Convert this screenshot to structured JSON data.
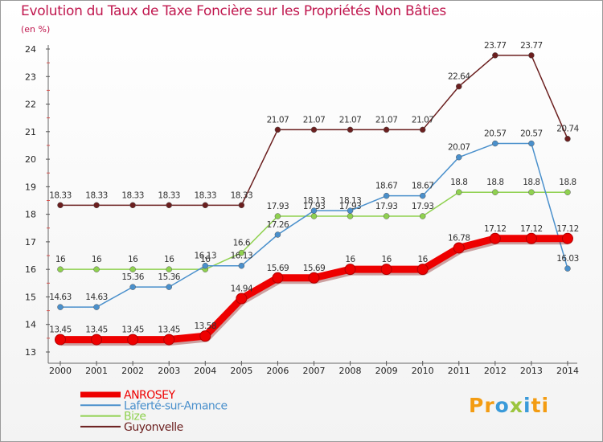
{
  "chart_data": {
    "type": "line",
    "title": "Evolution du Taux de Taxe Foncière sur les Propriétés Non Bâties",
    "ylabel": "(en %)",
    "xlabel": "",
    "categories": [
      "2000",
      "2001",
      "2002",
      "2003",
      "2004",
      "2005",
      "2006",
      "2007",
      "2008",
      "2009",
      "2010",
      "2011",
      "2012",
      "2013",
      "2014"
    ],
    "ylim": [
      13,
      24
    ],
    "yticks": [
      13,
      14,
      15,
      16,
      17,
      18,
      19,
      20,
      21,
      22,
      23,
      24
    ],
    "grid": false,
    "legend_position": "bottom-left",
    "series": [
      {
        "name": "ANROSEY",
        "color": "#ee0000",
        "values": [
          13.45,
          13.45,
          13.45,
          13.45,
          13.58,
          14.94,
          15.69,
          15.69,
          16,
          16,
          16,
          16.78,
          17.12,
          17.12,
          17.12
        ],
        "labels": [
          "13.45",
          "13.45",
          "13.45",
          "13.45",
          "13.58",
          "14.94",
          "15.69",
          "15.69",
          "16",
          "16",
          "16",
          "16.78",
          "17.12",
          "17.12",
          "17.12"
        ]
      },
      {
        "name": "Laferté-sur-Amance",
        "color": "#4a90cc",
        "values": [
          14.63,
          14.63,
          15.36,
          15.36,
          16.13,
          16.13,
          17.26,
          18.13,
          18.13,
          18.67,
          18.67,
          20.07,
          20.57,
          20.57,
          16.03
        ],
        "labels": [
          "14.63",
          "14.63",
          "15.36",
          "15.36",
          "16.13",
          "16.13",
          "17.26",
          "18.13",
          "18.13",
          "18.67",
          "18.67",
          "20.07",
          "20.57",
          "20.57",
          "16.03"
        ]
      },
      {
        "name": "Bize",
        "color": "#8fd14f",
        "values": [
          16,
          16,
          16,
          16,
          16,
          16.6,
          17.93,
          17.93,
          17.93,
          17.93,
          17.93,
          18.8,
          18.8,
          18.8,
          18.8
        ],
        "labels": [
          "16",
          "16",
          "16",
          "16",
          "16",
          "16.6",
          "17.93",
          "17.93",
          "17.93",
          "17.93",
          "17.93",
          "18.8",
          "18.8",
          "18.8",
          "18.8"
        ]
      },
      {
        "name": "Guyonvelle",
        "color": "#6b1f1f",
        "values": [
          18.33,
          18.33,
          18.33,
          18.33,
          18.33,
          18.33,
          21.07,
          21.07,
          21.07,
          21.07,
          21.07,
          22.64,
          23.77,
          23.77,
          20.74
        ],
        "labels": [
          "18.33",
          "18.33",
          "18.33",
          "18.33",
          "18.33",
          "18.33",
          "21.07",
          "21.07",
          "21.07",
          "21.07",
          "21.07",
          "22.64",
          "23.77",
          "23.77",
          "20.74"
        ]
      }
    ]
  },
  "branding": {
    "logo_parts": [
      "Pr",
      "o",
      "x",
      "i",
      "ti"
    ]
  }
}
